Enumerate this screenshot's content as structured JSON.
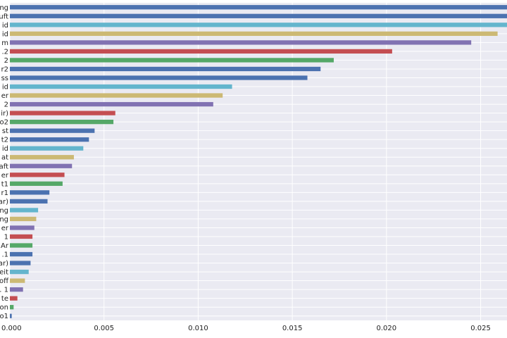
{
  "chart_data": {
    "type": "bar",
    "orientation": "horizontal",
    "grid": true,
    "legend": "none",
    "xlim": [
      0,
      0.0264
    ],
    "xticks": [
      {
        "value": 0.0,
        "label": "0.000"
      },
      {
        "value": 0.005,
        "label": "0.005"
      },
      {
        "value": 0.01,
        "label": "0.010"
      },
      {
        "value": 0.015,
        "label": "0.015"
      },
      {
        "value": 0.02,
        "label": "0.020"
      },
      {
        "value": 0.025,
        "label": "0.025"
      }
    ],
    "colors": {
      "background": "#eaeaf2",
      "grid": "#ffffff",
      "palette": [
        "#4c72b0",
        "#55a868",
        "#c44e52",
        "#8172b2",
        "#ccb974",
        "#64b5cd"
      ]
    },
    "categories": [
      "ng",
      "uft",
      "id",
      "id",
      "m",
      ".2",
      " 2",
      "r2",
      "ss",
      "id",
      "er",
      " 2",
      "ir)",
      "o2",
      "st",
      "t2",
      "id",
      "at",
      "aft",
      "er",
      "t1",
      "r1",
      "ar)",
      "ng",
      "ng",
      "er",
      " 1",
      "Ar",
      ".1",
      "ar)",
      "eit",
      "off",
      ". 1",
      "te",
      "on",
      "o1"
    ],
    "values": [
      0.027,
      0.0268,
      0.0266,
      0.0259,
      0.0245,
      0.0203,
      0.0172,
      0.0165,
      0.0158,
      0.0118,
      0.0113,
      0.0108,
      0.0056,
      0.0055,
      0.0045,
      0.0042,
      0.0039,
      0.0034,
      0.0033,
      0.0029,
      0.0028,
      0.0021,
      0.002,
      0.0015,
      0.0014,
      0.0013,
      0.0012,
      0.0012,
      0.0012,
      0.0011,
      0.001,
      0.0008,
      0.0007,
      0.0004,
      0.0002,
      0.0001
    ],
    "bar_colors": [
      "#4c72b0",
      "#4c72b0",
      "#64b5cd",
      "#ccb974",
      "#8172b2",
      "#c44e52",
      "#55a868",
      "#4c72b0",
      "#4c72b0",
      "#64b5cd",
      "#ccb974",
      "#8172b2",
      "#c44e52",
      "#55a868",
      "#4c72b0",
      "#4c72b0",
      "#64b5cd",
      "#ccb974",
      "#8172b2",
      "#c44e52",
      "#55a868",
      "#4c72b0",
      "#4c72b0",
      "#64b5cd",
      "#ccb974",
      "#8172b2",
      "#c44e52",
      "#55a868",
      "#4c72b0",
      "#4c72b0",
      "#64b5cd",
      "#ccb974",
      "#8172b2",
      "#c44e52",
      "#55a868",
      "#4c72b0"
    ]
  }
}
